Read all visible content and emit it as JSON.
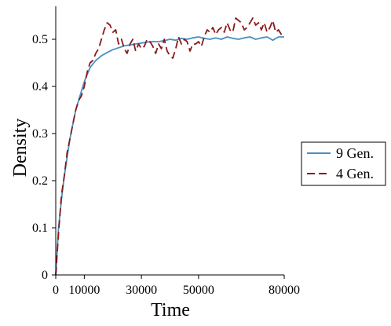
{
  "chart_data": {
    "type": "line",
    "title": "",
    "xlabel": "Time",
    "ylabel": "Density",
    "xlim": [
      0,
      80000
    ],
    "ylim": [
      0,
      0.57
    ],
    "x_ticks": [
      0,
      10000,
      30000,
      50000,
      80000
    ],
    "x_tick_labels": [
      "0",
      "10000",
      "30000",
      "50000",
      "80000"
    ],
    "y_ticks": [
      0,
      0.1,
      0.2,
      0.3,
      0.4,
      0.5
    ],
    "y_tick_labels": [
      "0",
      "0.1",
      "0.2",
      "0.3",
      "0.4",
      "0.5"
    ],
    "grid": false,
    "legend_position": "right",
    "series": [
      {
        "name": "9 Gen.",
        "color": "#4A8FC2",
        "style": "solid",
        "x": [
          0,
          1000,
          2000,
          3000,
          4000,
          5000,
          6000,
          7000,
          8000,
          9000,
          10000,
          11000,
          12000,
          14000,
          16000,
          18000,
          20000,
          22000,
          24000,
          26000,
          28000,
          30000,
          32000,
          34000,
          36000,
          38000,
          40000,
          42000,
          44000,
          46000,
          48000,
          50000,
          52000,
          54000,
          56000,
          58000,
          60000,
          62000,
          64000,
          66000,
          68000,
          70000,
          72000,
          74000,
          76000,
          78000,
          80000
        ],
        "values": [
          0.0,
          0.1,
          0.16,
          0.21,
          0.25,
          0.29,
          0.32,
          0.35,
          0.37,
          0.39,
          0.41,
          0.425,
          0.44,
          0.455,
          0.465,
          0.472,
          0.478,
          0.482,
          0.486,
          0.488,
          0.49,
          0.492,
          0.494,
          0.495,
          0.495,
          0.497,
          0.5,
          0.498,
          0.502,
          0.5,
          0.503,
          0.505,
          0.502,
          0.5,
          0.503,
          0.5,
          0.505,
          0.502,
          0.5,
          0.503,
          0.505,
          0.5,
          0.503,
          0.505,
          0.498,
          0.505,
          0.505
        ]
      },
      {
        "name": "4 Gen.",
        "color": "#8B1A1A",
        "style": "dashed",
        "x": [
          0,
          1000,
          2000,
          3000,
          4000,
          5000,
          6000,
          7000,
          8000,
          9000,
          10000,
          11000,
          12000,
          13000,
          14000,
          15000,
          16000,
          17000,
          18000,
          19000,
          20000,
          21000,
          22000,
          23000,
          24000,
          25000,
          26000,
          27000,
          28000,
          29000,
          30000,
          31000,
          32000,
          33000,
          34000,
          35000,
          36000,
          37000,
          38000,
          39000,
          40000,
          41000,
          42000,
          43000,
          44000,
          45000,
          46000,
          47000,
          48000,
          49000,
          50000,
          51000,
          52000,
          53000,
          54000,
          55000,
          56000,
          57000,
          58000,
          59000,
          60000,
          61000,
          62000,
          63000,
          64000,
          65000,
          66000,
          67000,
          68000,
          69000,
          70000,
          71000,
          72000,
          73000,
          74000,
          75000,
          76000,
          77000,
          78000,
          79000,
          80000
        ],
        "values": [
          0.0,
          0.09,
          0.17,
          0.21,
          0.26,
          0.29,
          0.32,
          0.35,
          0.37,
          0.38,
          0.4,
          0.43,
          0.45,
          0.455,
          0.47,
          0.48,
          0.5,
          0.52,
          0.535,
          0.53,
          0.515,
          0.52,
          0.49,
          0.5,
          0.48,
          0.47,
          0.49,
          0.5,
          0.475,
          0.49,
          0.48,
          0.485,
          0.5,
          0.495,
          0.485,
          0.47,
          0.49,
          0.48,
          0.5,
          0.475,
          0.465,
          0.46,
          0.48,
          0.505,
          0.49,
          0.5,
          0.495,
          0.475,
          0.49,
          0.49,
          0.495,
          0.485,
          0.505,
          0.52,
          0.515,
          0.525,
          0.51,
          0.52,
          0.525,
          0.515,
          0.535,
          0.52,
          0.515,
          0.545,
          0.54,
          0.535,
          0.52,
          0.525,
          0.535,
          0.545,
          0.53,
          0.535,
          0.52,
          0.535,
          0.515,
          0.525,
          0.54,
          0.515,
          0.52,
          0.51,
          0.505
        ]
      }
    ]
  }
}
